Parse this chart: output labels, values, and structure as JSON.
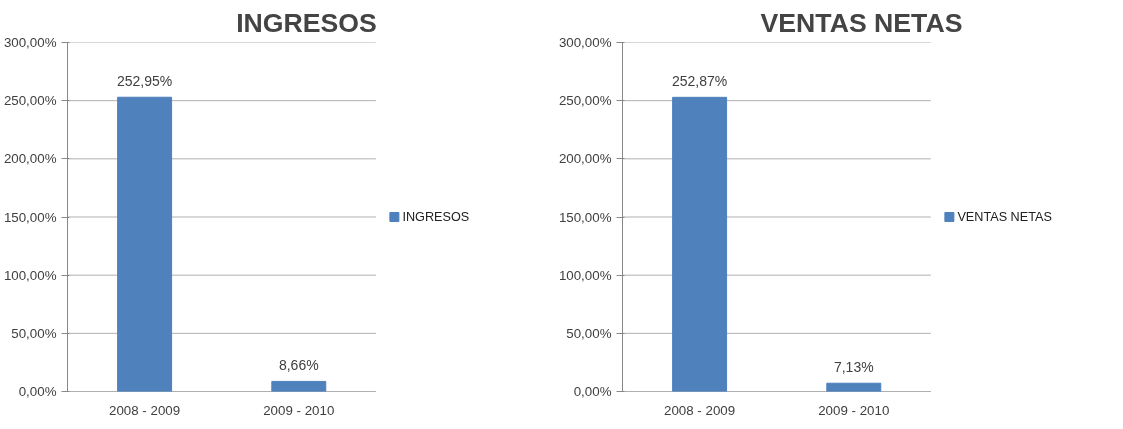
{
  "chart_data": [
    {
      "type": "bar",
      "title": "INGRESOS",
      "categories": [
        "2008 - 2009",
        "2009 - 2010"
      ],
      "series": [
        {
          "name": "INGRESOS",
          "color": "#4f81bd",
          "values": [
            252.95,
            8.66
          ],
          "value_labels": [
            "252,95%",
            "8,66%"
          ]
        }
      ],
      "ylim": [
        0,
        300
      ],
      "yticks": [
        {
          "value": 0,
          "label": "0,00%"
        },
        {
          "value": 50,
          "label": "50,00%"
        },
        {
          "value": 100,
          "label": "100,00%"
        },
        {
          "value": 150,
          "label": "150,00%"
        },
        {
          "value": 200,
          "label": "200,00%"
        },
        {
          "value": 250,
          "label": "250,00%"
        },
        {
          "value": 300,
          "label": "300,00%"
        }
      ],
      "grid": "y",
      "legend": "right"
    },
    {
      "type": "bar",
      "title": "VENTAS NETAS",
      "categories": [
        "2008 - 2009",
        "2009 - 2010"
      ],
      "series": [
        {
          "name": "VENTAS NETAS",
          "color": "#4f81bd",
          "values": [
            252.87,
            7.13
          ],
          "value_labels": [
            "252,87%",
            "7,13%"
          ]
        }
      ],
      "ylim": [
        0,
        300
      ],
      "yticks": [
        {
          "value": 0,
          "label": "0,00%"
        },
        {
          "value": 50,
          "label": "50,00%"
        },
        {
          "value": 100,
          "label": "100,00%"
        },
        {
          "value": 150,
          "label": "150,00%"
        },
        {
          "value": 200,
          "label": "200,00%"
        },
        {
          "value": 250,
          "label": "250,00%"
        },
        {
          "value": 300,
          "label": "300,00%"
        }
      ],
      "grid": "y",
      "legend": "right"
    }
  ]
}
